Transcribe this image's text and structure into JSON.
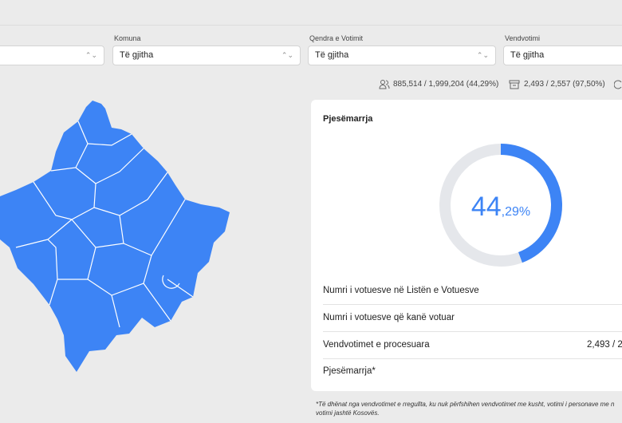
{
  "filters": [
    {
      "value": ""
    },
    {
      "label": "Komuna",
      "value": "Të gjitha"
    },
    {
      "label": "Qendra e Votimit",
      "value": "Të gjitha"
    },
    {
      "label": "Vendvotimi",
      "value": "Të gjitha"
    }
  ],
  "stats": {
    "voters": "885,514 / 1,999,204 (44,29%)",
    "stations": "2,493 / 2,557 (97,50%)"
  },
  "card": {
    "title": "Pjesëmarrja",
    "donut": {
      "value": 44.29,
      "label_int": "44",
      "label_dec": ",29%"
    },
    "rows": [
      {
        "label": "Numri i votuesve në Listën e Votuesve"
      },
      {
        "label": "Numri i votuesve që kanë votuar"
      },
      {
        "label": "Vendvotimet e procesuara",
        "value": "2,493 / 2"
      },
      {
        "label": "Pjesëmarrja*"
      }
    ]
  },
  "footnote": [
    "*Të dhënat nga vendvotimet e rregullta, ku nuk përfshihen vendvotimet me kusht, votimi i personave me n",
    "votimi jashtë Kosovës."
  ]
}
